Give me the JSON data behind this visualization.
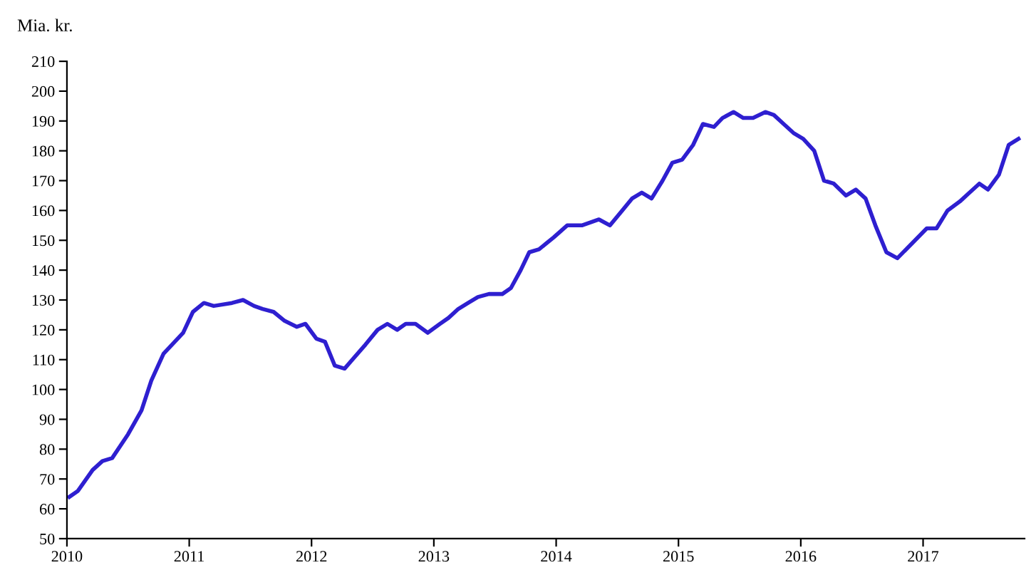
{
  "chart_data": {
    "type": "line",
    "ylabel": "Mia. kr.",
    "xlim": [
      2010,
      2017.83
    ],
    "xticks": [
      2010,
      2011,
      2012,
      2013,
      2014,
      2015,
      2016,
      2017
    ],
    "ylim": [
      50,
      210
    ],
    "yticks": [
      50,
      60,
      70,
      80,
      90,
      100,
      110,
      120,
      130,
      140,
      150,
      160,
      170,
      180,
      190,
      200,
      210
    ],
    "grid": false,
    "legend": false,
    "marker": "none",
    "line_style": "solid",
    "series": [
      {
        "color": "#2e1fd0",
        "x": [
          2010.02,
          2010.09,
          2010.21,
          2010.29,
          2010.37,
          2010.5,
          2010.61,
          2010.69,
          2010.79,
          2010.95,
          2011.03,
          2011.12,
          2011.2,
          2011.35,
          2011.44,
          2011.53,
          2011.6,
          2011.69,
          2011.78,
          2011.88,
          2011.95,
          2012.04,
          2012.11,
          2012.19,
          2012.27,
          2012.44,
          2012.54,
          2012.62,
          2012.7,
          2012.77,
          2012.85,
          2012.95,
          2013.05,
          2013.12,
          2013.2,
          2013.28,
          2013.36,
          2013.45,
          2013.56,
          2013.63,
          2013.71,
          2013.78,
          2013.86,
          2013.98,
          2014.09,
          2014.21,
          2014.35,
          2014.44,
          2014.54,
          2014.62,
          2014.7,
          2014.78,
          2014.87,
          2014.95,
          2015.03,
          2015.12,
          2015.2,
          2015.29,
          2015.36,
          2015.45,
          2015.53,
          2015.61,
          2015.71,
          2015.78,
          2015.86,
          2015.94,
          2016.02,
          2016.11,
          2016.19,
          2016.27,
          2016.37,
          2016.45,
          2016.53,
          2016.61,
          2016.7,
          2016.79,
          2016.91,
          2017.03,
          2017.11,
          2017.2,
          2017.3,
          2017.38,
          2017.46,
          2017.53,
          2017.62,
          2017.7,
          2017.78
        ],
        "values": [
          64,
          66,
          73,
          76,
          77,
          85,
          93,
          103,
          112,
          119,
          126,
          129,
          128,
          129,
          130,
          128,
          127,
          126,
          123,
          121,
          122,
          117,
          116,
          108,
          107,
          115,
          120,
          122,
          120,
          122,
          122,
          119,
          122,
          124,
          127,
          129,
          131,
          132,
          132,
          134,
          140,
          146,
          147,
          151,
          155,
          155,
          157,
          155,
          160,
          164,
          166,
          164,
          170,
          176,
          177,
          182,
          189,
          188,
          191,
          193,
          191,
          191,
          193,
          192,
          189,
          186,
          184,
          180,
          170,
          169,
          165,
          167,
          164,
          155,
          146,
          144,
          149,
          154,
          154,
          160,
          163,
          166,
          169,
          167,
          172,
          182,
          184
        ]
      }
    ]
  }
}
